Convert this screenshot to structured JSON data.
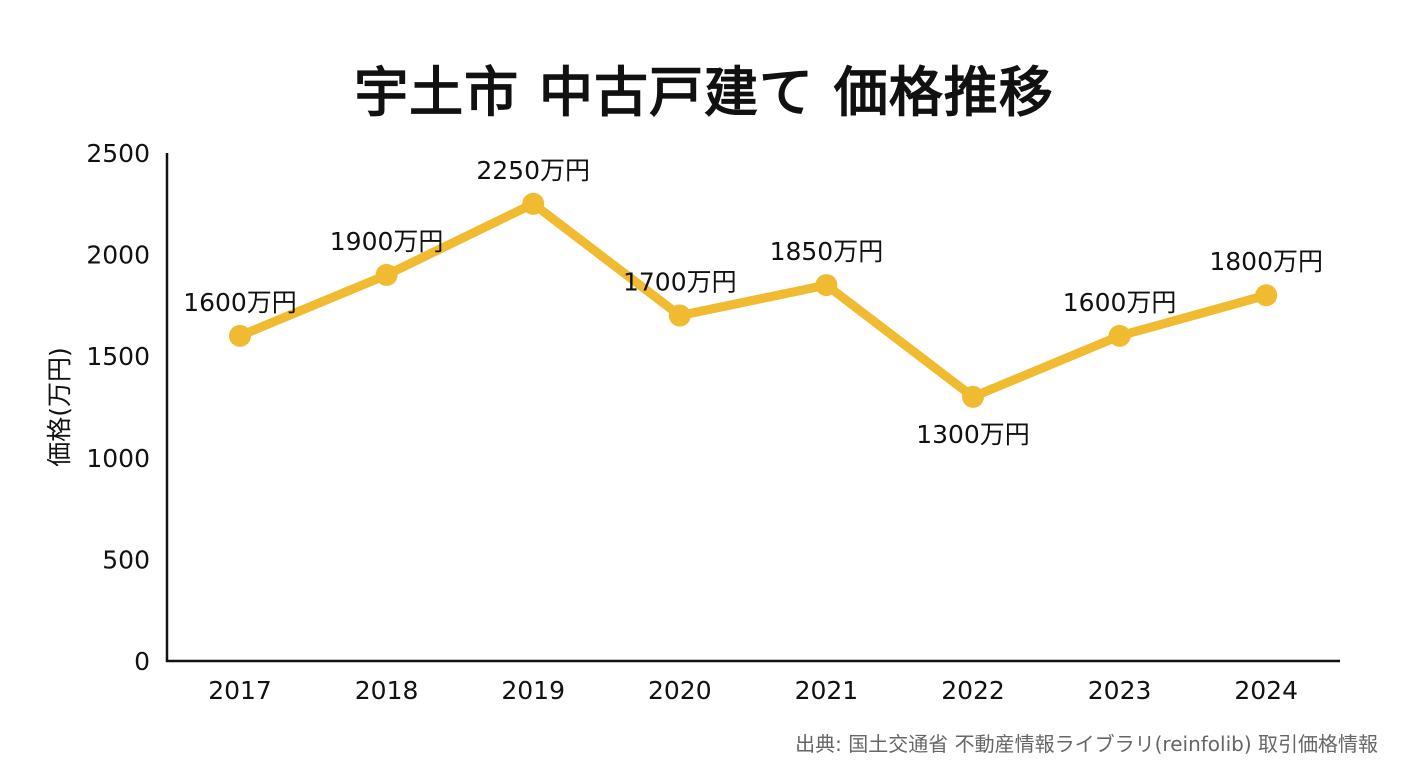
{
  "title": "宇土市 中古戸建て 価格推移",
  "source": "出典: 国土交通省 不動産情報ライブラリ(reinfolib) 取引価格情報",
  "colors": {
    "line": "#F0BA31",
    "axis": "#111111"
  },
  "chart_data": {
    "type": "line",
    "title": "宇土市 中古戸建て 価格推移",
    "xlabel": "",
    "ylabel": "価格(万円)",
    "ylim": [
      0,
      2500
    ],
    "yticks": [
      0,
      500,
      1000,
      1500,
      2000,
      2500
    ],
    "grid": false,
    "categories": [
      "2017",
      "2018",
      "2019",
      "2020",
      "2021",
      "2022",
      "2023",
      "2024"
    ],
    "series": [
      {
        "values": [
          1600,
          1900,
          2250,
          1700,
          1850,
          1300,
          1600,
          1800
        ],
        "labels": [
          "1600万円",
          "1900万円",
          "2250万円",
          "1700万円",
          "1850万円",
          "1300万円",
          "1600万円",
          "1800万円"
        ],
        "label_positions": [
          "above",
          "above",
          "above",
          "above",
          "above",
          "below",
          "above",
          "above"
        ]
      }
    ]
  }
}
